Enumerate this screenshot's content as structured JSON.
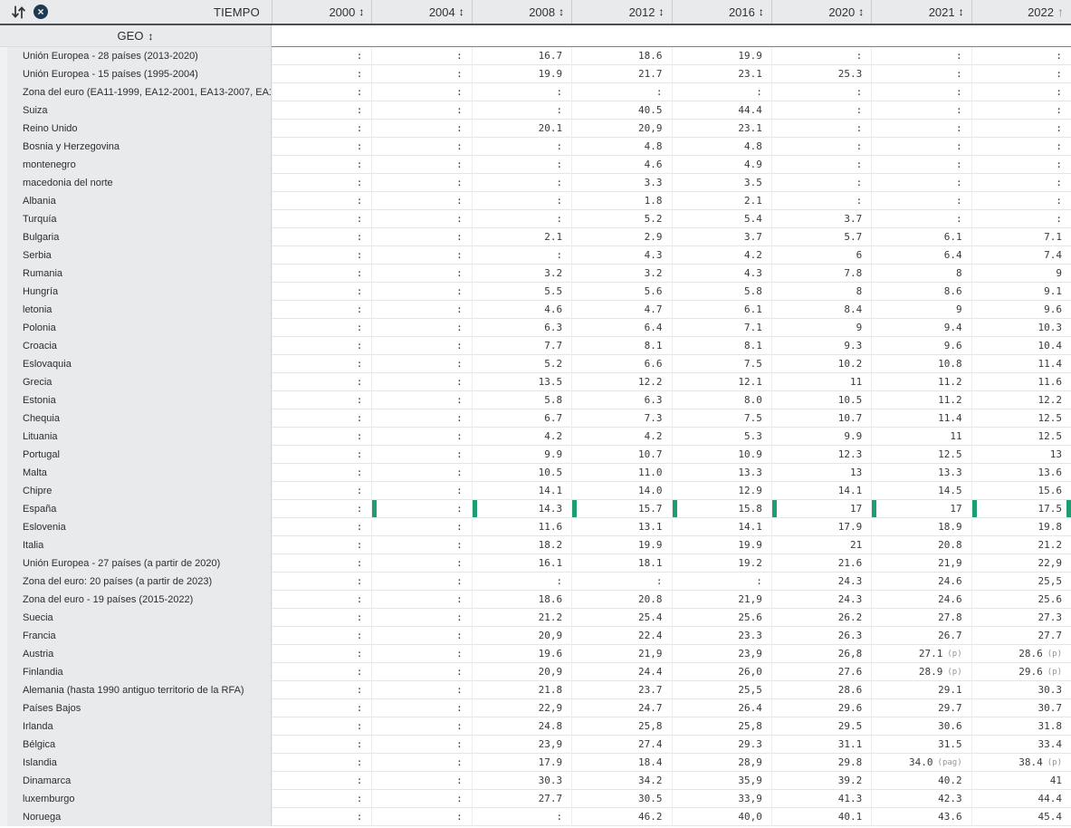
{
  "header": {
    "tiempo_label": "TIEMPO",
    "geo_label": "GEO",
    "sort_icons": {
      "swap_icon": "arrows-down-up",
      "clear_icon": "circle-x",
      "both": "↕",
      "ascending": "↑"
    },
    "years": [
      {
        "label": "2000",
        "sort": "both"
      },
      {
        "label": "2004",
        "sort": "both"
      },
      {
        "label": "2008",
        "sort": "both"
      },
      {
        "label": "2012",
        "sort": "both"
      },
      {
        "label": "2016",
        "sort": "both"
      },
      {
        "label": "2020",
        "sort": "both"
      },
      {
        "label": "2021",
        "sort": "both"
      },
      {
        "label": "2022",
        "sort": "asc"
      }
    ]
  },
  "colors": {
    "highlight_green": "#1f9c71",
    "header_bg": "#e9eaec",
    "icon_navy": "#1e3a52"
  },
  "table": {
    "missing_symbol": ":",
    "rows": [
      {
        "geo": "Unión Europea - 28 países (2013-2020)",
        "values": [
          ":",
          ":",
          "16.7",
          "18.6",
          "19.9",
          ":",
          ":",
          ":"
        ]
      },
      {
        "geo": "Unión Europea - 15 países (1995-2004)",
        "values": [
          ":",
          ":",
          "19.9",
          "21.7",
          "23.1",
          "25.3",
          ":",
          ":"
        ]
      },
      {
        "geo": "Zona del euro (EA11-1999, EA12-2001, EA13-2007, EA1…",
        "values": [
          ":",
          ":",
          ":",
          ":",
          ":",
          ":",
          ":",
          ":"
        ]
      },
      {
        "geo": "Suiza",
        "values": [
          ":",
          ":",
          ":",
          "40.5",
          "44.4",
          ":",
          ":",
          ":"
        ]
      },
      {
        "geo": "Reino Unido",
        "values": [
          ":",
          ":",
          "20.1",
          "20,9",
          "23.1",
          ":",
          ":",
          ":"
        ]
      },
      {
        "geo": "Bosnia y Herzegovina",
        "values": [
          ":",
          ":",
          ":",
          "4.8",
          "4.8",
          ":",
          ":",
          ":"
        ]
      },
      {
        "geo": "montenegro",
        "values": [
          ":",
          ":",
          ":",
          "4.6",
          "4.9",
          ":",
          ":",
          ":"
        ]
      },
      {
        "geo": "macedonia del norte",
        "values": [
          ":",
          ":",
          ":",
          "3.3",
          "3.5",
          ":",
          ":",
          ":"
        ]
      },
      {
        "geo": "Albania",
        "values": [
          ":",
          ":",
          ":",
          "1.8",
          "2.1",
          ":",
          ":",
          ":"
        ]
      },
      {
        "geo": "Turquía",
        "values": [
          ":",
          ":",
          ":",
          "5.2",
          "5.4",
          "3.7",
          ":",
          ":"
        ]
      },
      {
        "geo": "Bulgaria",
        "values": [
          ":",
          ":",
          "2.1",
          "2.9",
          "3.7",
          "5.7",
          "6.1",
          "7.1"
        ]
      },
      {
        "geo": "Serbia",
        "values": [
          ":",
          ":",
          ":",
          "4.3",
          "4.2",
          "6",
          "6.4",
          "7.4"
        ]
      },
      {
        "geo": "Rumania",
        "values": [
          ":",
          ":",
          "3.2",
          "3.2",
          "4.3",
          "7.8",
          "8",
          "9"
        ]
      },
      {
        "geo": "Hungría",
        "values": [
          ":",
          ":",
          "5.5",
          "5.6",
          "5.8",
          "8",
          "8.6",
          "9.1"
        ]
      },
      {
        "geo": "letonia",
        "values": [
          ":",
          ":",
          "4.6",
          "4.7",
          "6.1",
          "8.4",
          "9",
          "9.6"
        ]
      },
      {
        "geo": "Polonia",
        "values": [
          ":",
          ":",
          "6.3",
          "6.4",
          "7.1",
          "9",
          "9.4",
          "10.3"
        ]
      },
      {
        "geo": "Croacia",
        "values": [
          ":",
          ":",
          "7.7",
          "8.1",
          "8.1",
          "9.3",
          "9.6",
          "10.4"
        ]
      },
      {
        "geo": "Eslovaquia",
        "values": [
          ":",
          ":",
          "5.2",
          "6.6",
          "7.5",
          "10.2",
          "10.8",
          "11.4"
        ]
      },
      {
        "geo": "Grecia",
        "values": [
          ":",
          ":",
          "13.5",
          "12.2",
          "12.1",
          "11",
          "11.2",
          "11.6"
        ]
      },
      {
        "geo": "Estonia",
        "values": [
          ":",
          ":",
          "5.8",
          "6.3",
          "8.0",
          "10.5",
          "11.2",
          "12.2"
        ]
      },
      {
        "geo": "Chequia",
        "values": [
          ":",
          ":",
          "6.7",
          "7.3",
          "7.5",
          "10.7",
          "11.4",
          "12.5"
        ]
      },
      {
        "geo": "Lituania",
        "values": [
          ":",
          ":",
          "4.2",
          "4.2",
          "5.3",
          "9.9",
          "11",
          "12.5"
        ]
      },
      {
        "geo": "Portugal",
        "values": [
          ":",
          ":",
          "9.9",
          "10.7",
          "10.9",
          "12.3",
          "12.5",
          "13"
        ]
      },
      {
        "geo": "Malta",
        "values": [
          ":",
          ":",
          "10.5",
          "11.0",
          "13.3",
          "13",
          "13.3",
          "13.6"
        ]
      },
      {
        "geo": "Chipre",
        "values": [
          ":",
          ":",
          "14.1",
          "14.0",
          "12.9",
          "14.1",
          "14.5",
          "15.6"
        ]
      },
      {
        "geo": "España",
        "highlighted": true,
        "values": [
          ":",
          ":",
          "14.3",
          "15.7",
          "15.8",
          "17",
          "17",
          "17.5"
        ]
      },
      {
        "geo": "Eslovenia",
        "values": [
          ":",
          ":",
          "11.6",
          "13.1",
          "14.1",
          "17.9",
          "18.9",
          "19.8"
        ]
      },
      {
        "geo": "Italia",
        "values": [
          ":",
          ":",
          "18.2",
          "19.9",
          "19.9",
          "21",
          "20.8",
          "21.2"
        ]
      },
      {
        "geo": "Unión Europea - 27 países (a partir de 2020)",
        "values": [
          ":",
          ":",
          "16.1",
          "18.1",
          "19.2",
          "21.6",
          "21,9",
          "22,9"
        ]
      },
      {
        "geo": "Zona del euro: 20 países (a partir de 2023)",
        "values": [
          ":",
          ":",
          ":",
          ":",
          ":",
          "24.3",
          "24.6",
          "25,5"
        ]
      },
      {
        "geo": "Zona del euro - 19 países (2015-2022)",
        "values": [
          ":",
          ":",
          "18.6",
          "20.8",
          "21,9",
          "24.3",
          "24.6",
          "25.6"
        ]
      },
      {
        "geo": "Suecia",
        "values": [
          ":",
          ":",
          "21.2",
          "25.4",
          "25.6",
          "26.2",
          "27.8",
          "27.3"
        ]
      },
      {
        "geo": "Francia",
        "values": [
          ":",
          ":",
          "20,9",
          "22.4",
          "23.3",
          "26.3",
          "26.7",
          "27.7"
        ]
      },
      {
        "geo": "Austria",
        "values": [
          ":",
          ":",
          "19.6",
          "21,9",
          "23,9",
          "26,8",
          {
            "v": "27.1",
            "f": "(p)"
          },
          {
            "v": "28.6",
            "f": "(p)"
          }
        ]
      },
      {
        "geo": "Finlandia",
        "values": [
          ":",
          ":",
          "20,9",
          "24.4",
          "26,0",
          "27.6",
          {
            "v": "28.9",
            "f": "(p)"
          },
          {
            "v": "29.6",
            "f": "(p)"
          }
        ]
      },
      {
        "geo": "Alemania (hasta 1990 antiguo territorio de la RFA)",
        "values": [
          ":",
          ":",
          "21.8",
          "23.7",
          "25,5",
          "28.6",
          "29.1",
          "30.3"
        ]
      },
      {
        "geo": "Países Bajos",
        "values": [
          ":",
          ":",
          "22,9",
          "24.7",
          "26.4",
          "29.6",
          "29.7",
          "30.7"
        ]
      },
      {
        "geo": "Irlanda",
        "values": [
          ":",
          ":",
          "24.8",
          "25,8",
          "25,8",
          "29.5",
          "30.6",
          "31.8"
        ]
      },
      {
        "geo": "Bélgica",
        "values": [
          ":",
          ":",
          "23,9",
          "27.4",
          "29.3",
          "31.1",
          "31.5",
          "33.4"
        ]
      },
      {
        "geo": "Islandia",
        "values": [
          ":",
          ":",
          "17.9",
          "18.4",
          "28,9",
          "29.8",
          {
            "v": "34.0",
            "f": "(pag)"
          },
          {
            "v": "38.4",
            "f": "(p)"
          }
        ]
      },
      {
        "geo": "Dinamarca",
        "values": [
          ":",
          ":",
          "30.3",
          "34.2",
          "35,9",
          "39.2",
          "40.2",
          "41"
        ]
      },
      {
        "geo": "luxemburgo",
        "values": [
          ":",
          ":",
          "27.7",
          "30.5",
          "33,9",
          "41.3",
          "42.3",
          "44.4"
        ]
      },
      {
        "geo": "Noruega",
        "values": [
          ":",
          ":",
          ":",
          "46.2",
          "40,0",
          "40.1",
          "43.6",
          "45.4"
        ]
      }
    ]
  }
}
